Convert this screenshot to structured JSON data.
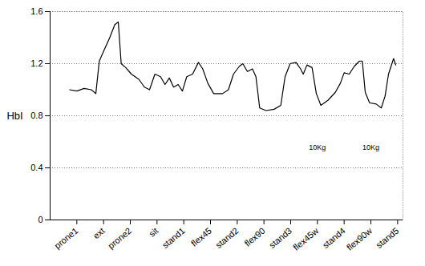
{
  "chart_data": {
    "type": "line",
    "y_label": "HbI",
    "color": "#000000",
    "grid": true,
    "xlim": [
      -1,
      12.2
    ],
    "ylim": [
      0,
      1.6
    ],
    "yticks": [
      0,
      0.4,
      0.8,
      1.2,
      1.6
    ],
    "xticks": [
      {
        "value": 0,
        "label": "prone1"
      },
      {
        "value": 1,
        "label": "ext"
      },
      {
        "value": 2,
        "label": "prone2"
      },
      {
        "value": 3,
        "label": "sit"
      },
      {
        "value": 4,
        "label": "stand1"
      },
      {
        "value": 5,
        "label": "flex45"
      },
      {
        "value": 6,
        "label": "stand2"
      },
      {
        "value": 7,
        "label": "flex90"
      },
      {
        "value": 8,
        "label": "stand3"
      },
      {
        "value": 9,
        "label": "flex45w"
      },
      {
        "value": 10,
        "label": "stand4"
      },
      {
        "value": 11,
        "label": "flex90w"
      },
      {
        "value": 12,
        "label": "stand5"
      }
    ],
    "x": [
      -0.27,
      0,
      0.27,
      0.54,
      0.71,
      0.84,
      1.01,
      1.23,
      1.42,
      1.55,
      1.66,
      1.83,
      2.04,
      2.32,
      2.53,
      2.72,
      2.92,
      3.13,
      3.3,
      3.46,
      3.62,
      3.79,
      3.95,
      4.11,
      4.33,
      4.55,
      4.71,
      4.9,
      5.12,
      5.45,
      5.67,
      5.86,
      6.08,
      6.21,
      6.38,
      6.57,
      6.7,
      6.84,
      7.08,
      7.38,
      7.63,
      7.79,
      7.98,
      8.2,
      8.37,
      8.47,
      8.61,
      8.8,
      8.96,
      9.13,
      9.4,
      9.67,
      9.86,
      10.0,
      10.19,
      10.38,
      10.57,
      10.68,
      10.79,
      10.95,
      11.2,
      11.39,
      11.53,
      11.66,
      11.85,
      11.93
    ],
    "values": [
      1.0,
      0.99,
      1.01,
      1.0,
      0.97,
      1.22,
      1.3,
      1.4,
      1.5,
      1.52,
      1.2,
      1.17,
      1.12,
      1.08,
      1.02,
      1.0,
      1.12,
      1.1,
      1.04,
      1.09,
      1.02,
      1.04,
      0.99,
      1.1,
      1.12,
      1.21,
      1.16,
      1.05,
      0.97,
      0.97,
      1.0,
      1.12,
      1.18,
      1.2,
      1.14,
      1.16,
      1.1,
      0.86,
      0.84,
      0.85,
      0.88,
      1.1,
      1.2,
      1.21,
      1.16,
      1.12,
      1.19,
      1.17,
      0.97,
      0.88,
      0.92,
      0.98,
      1.05,
      1.13,
      1.12,
      1.18,
      1.22,
      1.22,
      0.98,
      0.9,
      0.89,
      0.86,
      0.95,
      1.12,
      1.24,
      1.19
    ],
    "annotations": [
      {
        "text": "10Kg",
        "x": "flex45w"
      },
      {
        "text": "10Kg",
        "x": "flex90w"
      }
    ]
  }
}
